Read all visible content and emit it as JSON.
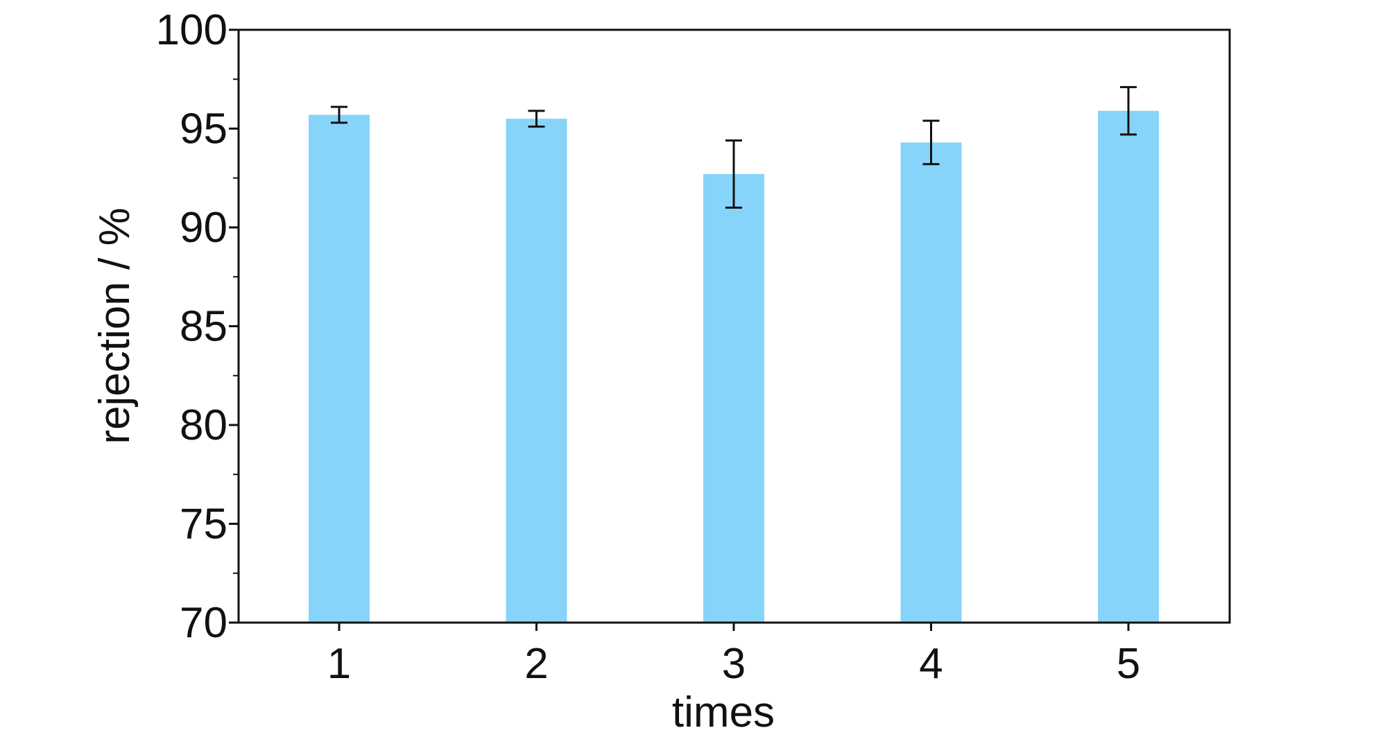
{
  "chart_data": {
    "type": "bar",
    "categories": [
      "1",
      "2",
      "3",
      "4",
      "5"
    ],
    "values": [
      95.7,
      95.5,
      92.7,
      94.3,
      95.9
    ],
    "errors": [
      0.4,
      0.4,
      1.7,
      1.1,
      1.2
    ],
    "title": "",
    "xlabel": "times",
    "ylabel": "rejection / %",
    "ylim": [
      70,
      100
    ],
    "yticks": [
      70,
      75,
      80,
      85,
      90,
      95,
      100
    ],
    "grid": false,
    "bar_color": "#87D4FB",
    "error_color": "#111111",
    "axis_color": "#111111"
  }
}
